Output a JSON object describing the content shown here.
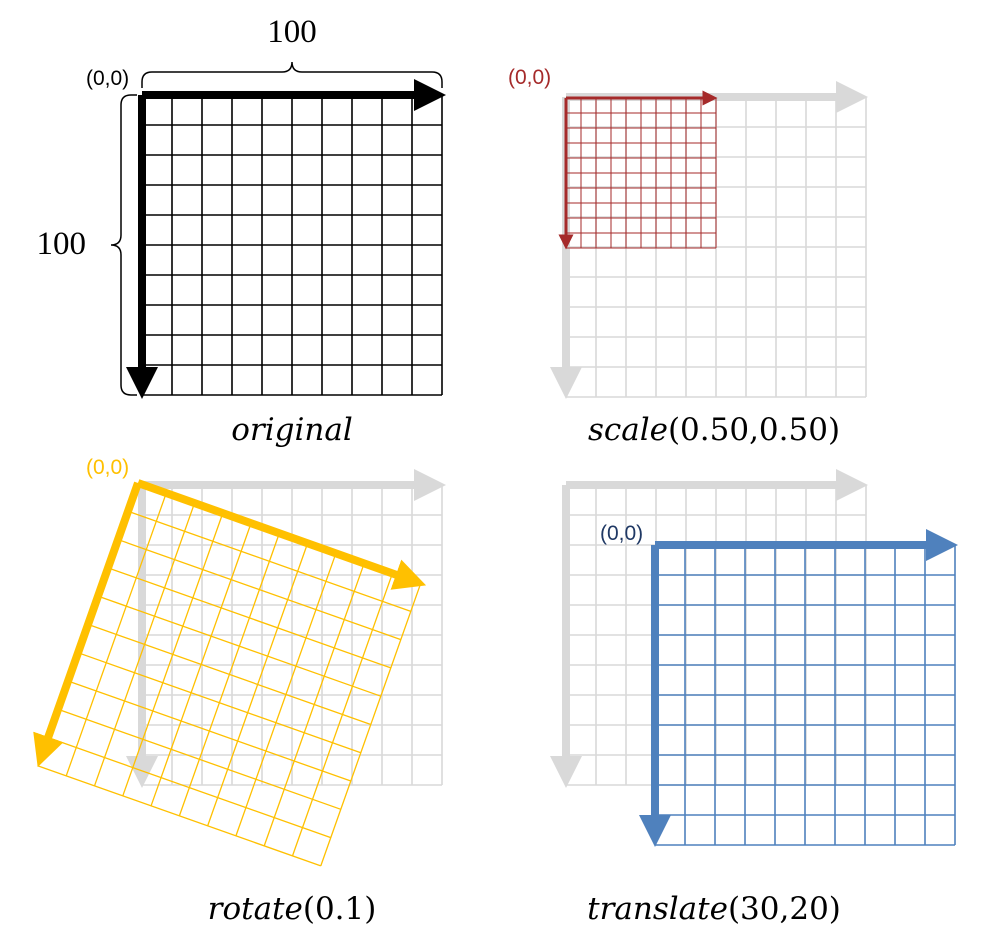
{
  "grid": {
    "size": 100,
    "divisions": 10
  },
  "colors": {
    "original": "#000000",
    "ghost": "#d9d9d9",
    "scale": "#a52a2a",
    "rotate": "#ffc000",
    "translate": "#4f81bd"
  },
  "panels": [
    {
      "id": "original",
      "origin_label": "(0,0)",
      "caption_fn": "original",
      "caption_args": ""
    },
    {
      "id": "scale",
      "origin_label": "(0,0)",
      "caption_fn": "scale",
      "caption_args": "(0.50,0.50)",
      "transform": {
        "type": "scale",
        "sx": 0.5,
        "sy": 0.5
      }
    },
    {
      "id": "rotate",
      "origin_label": "(0,0)",
      "caption_fn": "rotate",
      "caption_args": "(0.1)",
      "transform": {
        "type": "rotate",
        "angle_rad": 0.1
      }
    },
    {
      "id": "translate",
      "origin_label": "(0,0)",
      "caption_fn": "translate",
      "caption_args": "(30,20)",
      "transform": {
        "type": "translate",
        "tx": 30,
        "ty": 20
      }
    }
  ],
  "dimensions": {
    "width_label": "100",
    "height_label": "100"
  }
}
